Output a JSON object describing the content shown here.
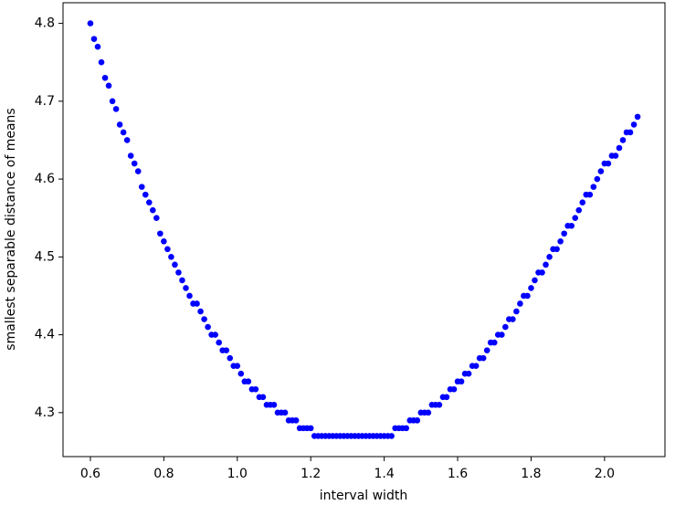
{
  "chart_data": {
    "type": "scatter",
    "x_label": "interval width",
    "y_label": "smallest separable distance of means",
    "xlim": [
      0.5255,
      2.1645
    ],
    "ylim": [
      4.2435,
      4.8265
    ],
    "xticks": [
      0.6,
      0.8,
      {
        "value": 1.0,
        "label": "1.0"
      },
      1.2,
      1.4,
      1.6,
      1.8,
      {
        "value": 2.0,
        "label": "2.0"
      }
    ],
    "yticks": [
      4.3,
      4.4,
      4.5,
      4.6,
      4.7,
      4.8
    ],
    "color": "#0000ff",
    "x": [
      0.6,
      0.61,
      0.62,
      0.63,
      0.64,
      0.65,
      0.66,
      0.67,
      0.68,
      0.69,
      0.7,
      0.71,
      0.72,
      0.73,
      0.74,
      0.75,
      0.76,
      0.77,
      0.78,
      0.79,
      0.8,
      0.81,
      0.82,
      0.83,
      0.84,
      0.85,
      0.86,
      0.87,
      0.88,
      0.89,
      0.9,
      0.91,
      0.92,
      0.93,
      0.94,
      0.95,
      0.96,
      0.97,
      0.98,
      0.99,
      1.0,
      1.01,
      1.02,
      1.03,
      1.04,
      1.05,
      1.06,
      1.07,
      1.08,
      1.09,
      1.1,
      1.11,
      1.12,
      1.13,
      1.14,
      1.15,
      1.16,
      1.17,
      1.18,
      1.19,
      1.2,
      1.21,
      1.22,
      1.23,
      1.24,
      1.25,
      1.26,
      1.27,
      1.28,
      1.29,
      1.3,
      1.31,
      1.32,
      1.33,
      1.34,
      1.35,
      1.36,
      1.37,
      1.38,
      1.39,
      1.4,
      1.41,
      1.42,
      1.43,
      1.44,
      1.45,
      1.46,
      1.47,
      1.48,
      1.49,
      1.5,
      1.51,
      1.52,
      1.53,
      1.54,
      1.55,
      1.56,
      1.57,
      1.58,
      1.59,
      1.6,
      1.61,
      1.62,
      1.63,
      1.64,
      1.65,
      1.66,
      1.67,
      1.68,
      1.69,
      1.7,
      1.71,
      1.72,
      1.73,
      1.74,
      1.75,
      1.76,
      1.77,
      1.78,
      1.79,
      1.8,
      1.81,
      1.82,
      1.83,
      1.84,
      1.85,
      1.86,
      1.87,
      1.88,
      1.89,
      1.9,
      1.91,
      1.92,
      1.93,
      1.94,
      1.95,
      1.96,
      1.97,
      1.98,
      1.99,
      2.0,
      2.01,
      2.02,
      2.03,
      2.04,
      2.05,
      2.06,
      2.07,
      2.08,
      2.09
    ],
    "values": [
      4.8,
      4.78,
      4.77,
      4.75,
      4.73,
      4.72,
      4.7,
      4.69,
      4.67,
      4.66,
      4.65,
      4.63,
      4.62,
      4.61,
      4.59,
      4.58,
      4.57,
      4.56,
      4.55,
      4.53,
      4.52,
      4.51,
      4.5,
      4.49,
      4.48,
      4.47,
      4.46,
      4.45,
      4.44,
      4.44,
      4.43,
      4.42,
      4.41,
      4.4,
      4.4,
      4.39,
      4.38,
      4.38,
      4.37,
      4.36,
      4.36,
      4.35,
      4.34,
      4.34,
      4.33,
      4.33,
      4.32,
      4.32,
      4.31,
      4.31,
      4.31,
      4.3,
      4.3,
      4.3,
      4.29,
      4.29,
      4.29,
      4.28,
      4.28,
      4.28,
      4.28,
      4.27,
      4.27,
      4.27,
      4.27,
      4.27,
      4.27,
      4.27,
      4.27,
      4.27,
      4.27,
      4.27,
      4.27,
      4.27,
      4.27,
      4.27,
      4.27,
      4.27,
      4.27,
      4.27,
      4.27,
      4.27,
      4.27,
      4.28,
      4.28,
      4.28,
      4.28,
      4.29,
      4.29,
      4.29,
      4.3,
      4.3,
      4.3,
      4.31,
      4.31,
      4.31,
      4.32,
      4.32,
      4.33,
      4.33,
      4.34,
      4.34,
      4.35,
      4.35,
      4.36,
      4.36,
      4.37,
      4.37,
      4.38,
      4.39,
      4.39,
      4.4,
      4.4,
      4.41,
      4.42,
      4.42,
      4.43,
      4.44,
      4.45,
      4.45,
      4.46,
      4.47,
      4.48,
      4.48,
      4.49,
      4.5,
      4.51,
      4.51,
      4.52,
      4.53,
      4.54,
      4.54,
      4.55,
      4.56,
      4.57,
      4.58,
      4.58,
      4.59,
      4.6,
      4.61,
      4.62,
      4.62,
      4.63,
      4.63,
      4.64,
      4.65,
      4.66,
      4.66,
      4.67,
      4.68
    ]
  }
}
